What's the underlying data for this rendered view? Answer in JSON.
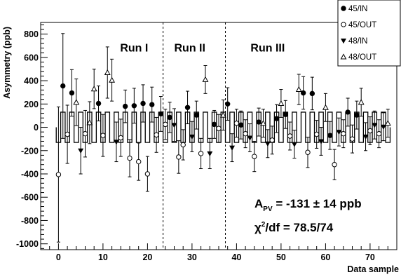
{
  "chart_data": {
    "type": "scatter",
    "title": "",
    "xlabel": "Data sample",
    "ylabel": "Asymmetry (ppb)",
    "xlim": [
      -4,
      76
    ],
    "ylim": [
      -1050,
      900
    ],
    "x_ticks": [
      0,
      10,
      20,
      30,
      40,
      50,
      60,
      70
    ],
    "x_tick_labels": [
      "0",
      "10",
      "20",
      "30",
      "40",
      "50",
      "60",
      "70"
    ],
    "y_ticks": [
      -1000,
      -800,
      -600,
      -400,
      -200,
      0,
      200,
      400,
      600,
      800
    ],
    "y_tick_labels": [
      "-1000",
      "-800",
      "-600",
      "-400",
      "-200",
      "0",
      "200",
      "400",
      "600",
      "800"
    ],
    "grid": false,
    "legend_position": "top-right",
    "run_boundaries": [
      23.5,
      37.5
    ],
    "run_labels": [
      {
        "text": "Run I",
        "x": 17,
        "y": 650
      },
      {
        "text": "Run II",
        "x": 29.5,
        "y": 650
      },
      {
        "text": "Run III",
        "x": 47,
        "y": 650
      }
    ],
    "fit_line": {
      "name": "A_PV",
      "value": -131,
      "error": 14,
      "unit": "ppb"
    },
    "stats": {
      "apv_main": "A",
      "apv_sub": "PV",
      "apv_rest": " = -131 ± 14 ppb",
      "chi_main": "χ",
      "chi_sup": "2",
      "chi_rest": "/df = 78.5/74"
    },
    "legend": [
      "45/IN",
      "45/OUT",
      "48/IN",
      "48/OUT"
    ],
    "box_half_height": 130,
    "series": [
      {
        "name": "45/IN",
        "marker": "filled-circle",
        "points": [
          {
            "x": 1,
            "y": 355,
            "err": 450
          },
          {
            "x": 3,
            "y": 295,
            "err": 200
          },
          {
            "x": 9,
            "y": 205,
            "err": 150
          },
          {
            "x": 15,
            "y": 180,
            "err": 140
          },
          {
            "x": 17,
            "y": 185,
            "err": 150
          },
          {
            "x": 19,
            "y": 205,
            "err": 160
          },
          {
            "x": 21,
            "y": 195,
            "err": 150
          },
          {
            "x": 23,
            "y": 115,
            "err": 150
          },
          {
            "x": 25,
            "y": 85,
            "err": 130
          },
          {
            "x": 29,
            "y": 170,
            "err": 140
          },
          {
            "x": 31,
            "y": 105,
            "err": 120
          },
          {
            "x": 35,
            "y": 25,
            "err": 120
          },
          {
            "x": 38,
            "y": 200,
            "err": 140
          },
          {
            "x": 41,
            "y": 20,
            "err": 120
          },
          {
            "x": 45,
            "y": 45,
            "err": 120
          },
          {
            "x": 49,
            "y": 75,
            "err": 120
          },
          {
            "x": 51,
            "y": 110,
            "err": 120
          },
          {
            "x": 55,
            "y": 295,
            "err": 140
          },
          {
            "x": 57,
            "y": 290,
            "err": 140
          },
          {
            "x": 61,
            "y": -70,
            "err": 120
          },
          {
            "x": 65,
            "y": 130,
            "err": 120
          },
          {
            "x": 67,
            "y": 105,
            "err": 120
          }
        ]
      },
      {
        "name": "45/OUT",
        "marker": "open-circle",
        "points": [
          {
            "x": 0,
            "y": -405,
            "err": 580
          },
          {
            "x": 2,
            "y": -60,
            "err": 250
          },
          {
            "x": 6,
            "y": -55,
            "err": 200
          },
          {
            "x": 10,
            "y": -70,
            "err": 180
          },
          {
            "x": 14,
            "y": -90,
            "err": 160
          },
          {
            "x": 16,
            "y": -265,
            "err": 160
          },
          {
            "x": 18,
            "y": -295,
            "err": 160
          },
          {
            "x": 20,
            "y": -400,
            "err": 150
          },
          {
            "x": 22,
            "y": -65,
            "err": 150
          },
          {
            "x": 24,
            "y": 25,
            "err": 130
          },
          {
            "x": 27,
            "y": -255,
            "err": 140
          },
          {
            "x": 28,
            "y": -150,
            "err": 130
          },
          {
            "x": 32,
            "y": -225,
            "err": 130
          },
          {
            "x": 36,
            "y": -10,
            "err": 120
          },
          {
            "x": 40,
            "y": 35,
            "err": 120
          },
          {
            "x": 42,
            "y": -55,
            "err": 120
          },
          {
            "x": 44,
            "y": -250,
            "err": 130
          },
          {
            "x": 48,
            "y": -110,
            "err": 120
          },
          {
            "x": 52,
            "y": -75,
            "err": 120
          },
          {
            "x": 56,
            "y": -215,
            "err": 130
          },
          {
            "x": 58,
            "y": -60,
            "err": 120
          },
          {
            "x": 62,
            "y": -320,
            "err": 130
          },
          {
            "x": 64,
            "y": -55,
            "err": 120
          },
          {
            "x": 66,
            "y": -100,
            "err": 120
          },
          {
            "x": 70,
            "y": -30,
            "err": 120
          },
          {
            "x": 72,
            "y": -55,
            "err": 120
          }
        ]
      },
      {
        "name": "48/IN",
        "marker": "filled-triangle-down",
        "points": [
          {
            "x": 5,
            "y": -200,
            "err": 200
          },
          {
            "x": 13,
            "y": -125,
            "err": 170
          },
          {
            "x": 26,
            "y": 20,
            "err": 140
          },
          {
            "x": 30,
            "y": -80,
            "err": 130
          },
          {
            "x": 34,
            "y": -225,
            "err": 130
          },
          {
            "x": 39,
            "y": -175,
            "err": 120
          },
          {
            "x": 43,
            "y": -90,
            "err": 120
          },
          {
            "x": 47,
            "y": -140,
            "err": 120
          },
          {
            "x": 53,
            "y": -145,
            "err": 120
          },
          {
            "x": 59,
            "y": -120,
            "err": 120
          },
          {
            "x": 63,
            "y": -40,
            "err": 120
          },
          {
            "x": 69,
            "y": -80,
            "err": 120
          },
          {
            "x": 71,
            "y": 20,
            "err": 120
          },
          {
            "x": 73,
            "y": 5,
            "err": 120
          }
        ]
      },
      {
        "name": "48/OUT",
        "marker": "open-triangle-up",
        "points": [
          {
            "x": 4,
            "y": 215,
            "err": 200
          },
          {
            "x": 7,
            "y": 40,
            "err": 180
          },
          {
            "x": 8,
            "y": 330,
            "err": 170
          },
          {
            "x": 11,
            "y": 470,
            "err": 220
          },
          {
            "x": 12,
            "y": 405,
            "err": 180
          },
          {
            "x": 33,
            "y": 410,
            "err": 120
          },
          {
            "x": 37,
            "y": 105,
            "err": 130
          },
          {
            "x": 46,
            "y": 35,
            "err": 120
          },
          {
            "x": 50,
            "y": 205,
            "err": 120
          },
          {
            "x": 54,
            "y": 325,
            "err": 130
          },
          {
            "x": 60,
            "y": 170,
            "err": 120
          },
          {
            "x": 68,
            "y": 215,
            "err": 120
          },
          {
            "x": 74,
            "y": 35,
            "err": 120
          }
        ]
      }
    ]
  }
}
